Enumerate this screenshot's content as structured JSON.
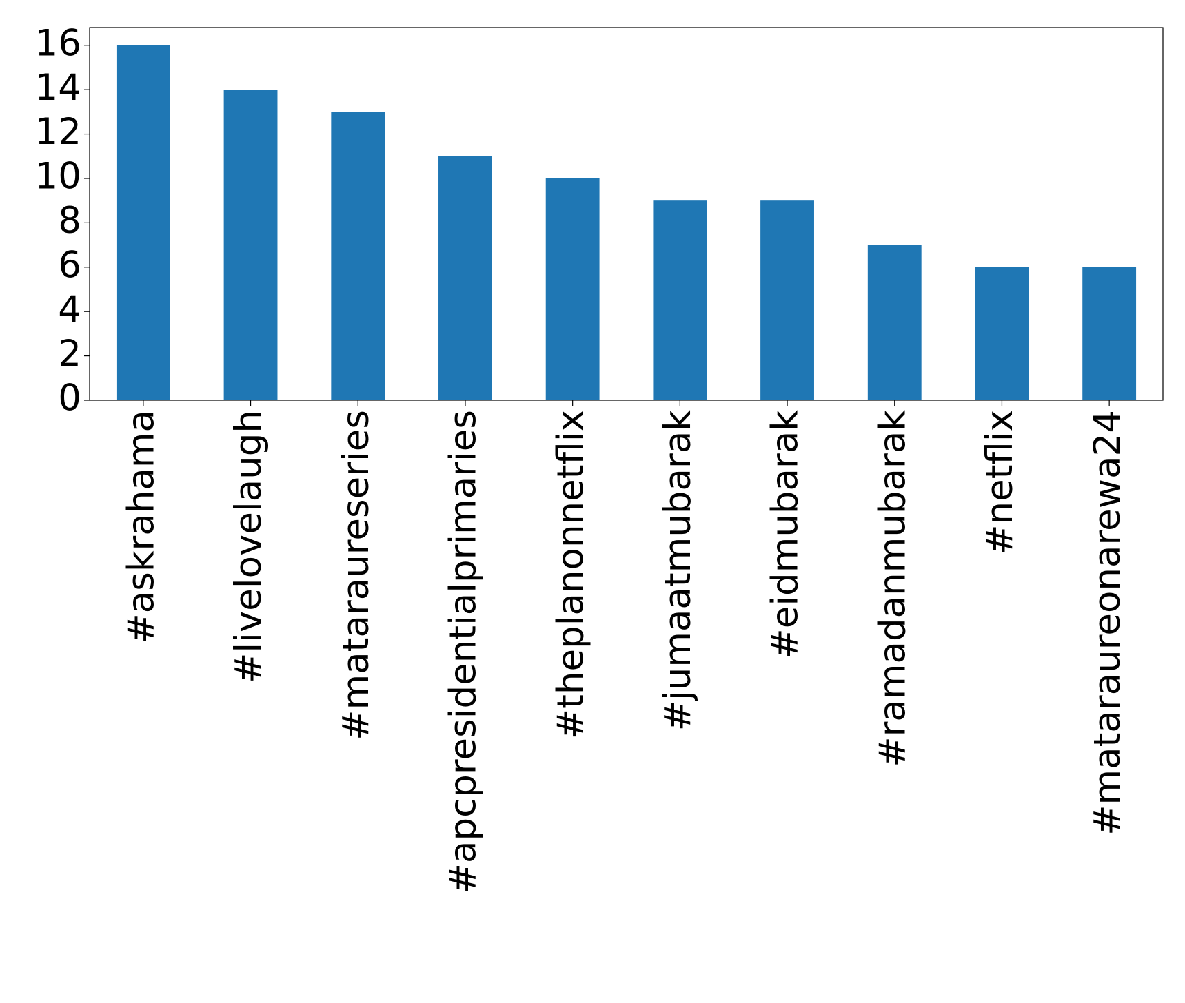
{
  "chart_data": {
    "type": "bar",
    "categories": [
      "#askrahama",
      "#livelovelaugh",
      "#mataraureseries",
      "#apcpresidentialprimaries",
      "#theplanonnetflix",
      "#jumaatmubarak",
      "#eidmubarak",
      "#ramadanmubarak",
      "#netflix",
      "#mataraureonarewa24"
    ],
    "values": [
      16,
      14,
      13,
      11,
      10,
      9,
      9,
      7,
      6,
      6
    ],
    "color": "#1f77b4",
    "ylim": [
      0,
      16.8
    ],
    "yticks": [
      0,
      2,
      4,
      6,
      8,
      10,
      12,
      14,
      16
    ],
    "grid": false
  }
}
